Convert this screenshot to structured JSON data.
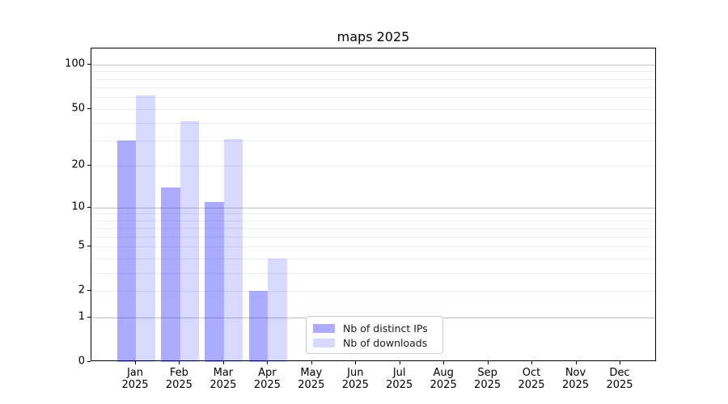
{
  "chart_data": {
    "type": "bar",
    "title": "maps 2025",
    "scale": "log1p",
    "ylim": [
      0,
      129
    ],
    "yticks": [
      0,
      1,
      2,
      5,
      10,
      20,
      50,
      100
    ],
    "major_gridlines": [
      1,
      10,
      100
    ],
    "minor_gridlines": [
      2,
      3,
      4,
      5,
      6,
      7,
      8,
      9,
      20,
      30,
      40,
      50,
      60,
      70,
      80,
      90
    ],
    "grid": {
      "major_color": "#c3c3c3",
      "minor_color": "#ededed"
    },
    "categories": [
      "Jan",
      "Feb",
      "Mar",
      "Apr",
      "May",
      "Jun",
      "Jul",
      "Aug",
      "Sep",
      "Oct",
      "Nov",
      "Dec"
    ],
    "year": "2025",
    "series": [
      {
        "name": "Nb of distinct IPs",
        "key": "distinct-ips",
        "color": "rgba(0,0,255,0.33)",
        "values": [
          30,
          14,
          11,
          2,
          0,
          0,
          0,
          0,
          0,
          0,
          0,
          0
        ]
      },
      {
        "name": "Nb of downloads",
        "key": "downloads",
        "color": "rgba(0,0,255,0.15)",
        "values": [
          62,
          41,
          31,
          4,
          0,
          0,
          0,
          0,
          0,
          0,
          0,
          0
        ]
      }
    ],
    "legend_position": "lower-center"
  }
}
